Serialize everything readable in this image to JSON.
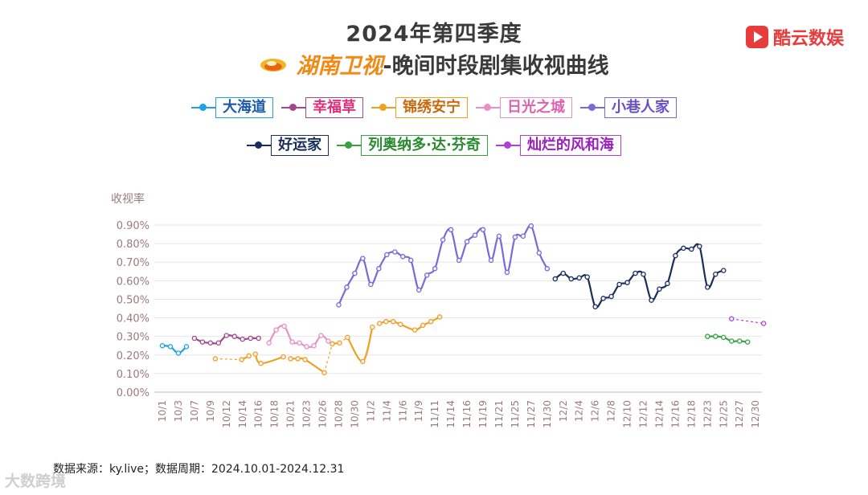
{
  "header": {
    "title_line1": "2024年第四季度",
    "channel": "湖南卫视",
    "title_line2_rest": "-晚间时段剧集收视曲线",
    "brand": "酷云数娱"
  },
  "footer": {
    "source": "数据来源：ky.live；数据周期：2024.10.01-2024.12.31",
    "watermark": "大数跨境"
  },
  "colors": {
    "title": "#3a3a3a",
    "channel": "#f08a14",
    "brand": "#e83c3c",
    "axis_text": "#9a7a80"
  },
  "chart_data": {
    "type": "line",
    "ylabel": "收视率",
    "ylim": [
      0,
      0.9
    ],
    "yticks": [
      "0.00%",
      "0.10%",
      "0.20%",
      "0.30%",
      "0.40%",
      "0.50%",
      "0.60%",
      "0.70%",
      "0.80%",
      "0.90%"
    ],
    "xticks": [
      "10/1",
      "10/3",
      "10/7",
      "10/9",
      "10/12",
      "10/14",
      "10/16",
      "10/18",
      "10/21",
      "10/23",
      "10/26",
      "10/28",
      "10/30",
      "11/2",
      "11/4",
      "11/6",
      "11/9",
      "11/11",
      "11/14",
      "11/16",
      "11/19",
      "11/21",
      "11/25",
      "11/27",
      "11/30",
      "12/2",
      "12/4",
      "12/6",
      "12/8",
      "12/10",
      "12/12",
      "12/14",
      "12/16",
      "12/18",
      "12/23",
      "12/25",
      "12/27",
      "12/30"
    ],
    "series": [
      {
        "name": "大海道",
        "color": "#1fa3e0",
        "text_color": "#1a5aa8",
        "legend_row": 1,
        "points": [
          [
            0,
            0.25
          ],
          [
            0.5,
            0.245
          ],
          [
            1,
            0.21
          ],
          [
            1.5,
            0.245
          ]
        ]
      },
      {
        "name": "幸福草",
        "color": "#a0488c",
        "text_color": "#e0307a",
        "legend_row": 1,
        "points": [
          [
            2,
            0.29
          ],
          [
            2.5,
            0.27
          ],
          [
            3,
            0.265
          ],
          [
            3.5,
            0.265
          ],
          [
            4,
            0.305
          ],
          [
            4.5,
            0.3
          ],
          [
            5,
            0.285
          ],
          [
            5.5,
            0.29
          ],
          [
            6,
            0.29
          ]
        ]
      },
      {
        "name": "锦绣安宁",
        "color": "#f0a020",
        "text_color": "#c86a10",
        "legend_row": 1,
        "points": [
          [
            3.3,
            0.18
          ],
          [
            4.95,
            0.175
          ],
          [
            5.4,
            0.195
          ],
          [
            5.8,
            0.205
          ],
          [
            6.15,
            0.155
          ],
          [
            7.55,
            0.19
          ],
          [
            8,
            0.18
          ],
          [
            8.45,
            0.18
          ],
          [
            8.9,
            0.175
          ],
          [
            10.1,
            0.105
          ],
          [
            10.6,
            0.26
          ],
          [
            11.05,
            0.265
          ],
          [
            11.55,
            0.295
          ],
          [
            12.5,
            0.165
          ],
          [
            13.1,
            0.35
          ],
          [
            13.55,
            0.37
          ],
          [
            13.95,
            0.38
          ],
          [
            14.4,
            0.38
          ],
          [
            14.85,
            0.365
          ],
          [
            15.75,
            0.335
          ],
          [
            16.25,
            0.36
          ],
          [
            16.75,
            0.38
          ],
          [
            17.3,
            0.405
          ]
        ],
        "dashed_after": [
          0,
          2,
          5,
          9,
          11,
          14
        ]
      },
      {
        "name": "日光之城",
        "color": "#e890c8",
        "text_color": "#e060b0",
        "legend_row": 1,
        "points": [
          [
            6.65,
            0.265
          ],
          [
            7.1,
            0.335
          ],
          [
            7.6,
            0.355
          ],
          [
            8.1,
            0.27
          ],
          [
            8.55,
            0.265
          ],
          [
            9.0,
            0.245
          ],
          [
            9.45,
            0.25
          ],
          [
            9.9,
            0.305
          ],
          [
            10.35,
            0.275
          ]
        ]
      },
      {
        "name": "小巷人家",
        "color": "#7a6ad8",
        "text_color": "#6a50c8",
        "legend_row": 1,
        "points": [
          [
            11.0,
            0.47
          ],
          [
            11.5,
            0.565
          ],
          [
            12.0,
            0.64
          ],
          [
            12.5,
            0.72
          ],
          [
            13.0,
            0.58
          ],
          [
            13.5,
            0.665
          ],
          [
            14.0,
            0.74
          ],
          [
            14.5,
            0.755
          ],
          [
            15.0,
            0.73
          ],
          [
            15.5,
            0.71
          ],
          [
            16.0,
            0.55
          ],
          [
            16.5,
            0.63
          ],
          [
            17.0,
            0.665
          ],
          [
            17.5,
            0.82
          ],
          [
            18.0,
            0.875
          ],
          [
            18.5,
            0.71
          ],
          [
            19.0,
            0.81
          ],
          [
            19.5,
            0.845
          ],
          [
            20.0,
            0.875
          ],
          [
            20.5,
            0.71
          ],
          [
            21.0,
            0.84
          ],
          [
            21.5,
            0.645
          ],
          [
            22.0,
            0.835
          ],
          [
            22.5,
            0.84
          ],
          [
            23.0,
            0.895
          ],
          [
            23.5,
            0.75
          ],
          [
            24.0,
            0.665
          ]
        ]
      },
      {
        "name": "好运家",
        "color": "#1a2e5c",
        "text_color": "#1a2e5c",
        "legend_row": 2,
        "points": [
          [
            24.5,
            0.61
          ],
          [
            25.0,
            0.64
          ],
          [
            25.5,
            0.61
          ],
          [
            26.0,
            0.615
          ],
          [
            26.5,
            0.62
          ],
          [
            27.0,
            0.46
          ],
          [
            27.5,
            0.505
          ],
          [
            28.0,
            0.515
          ],
          [
            28.5,
            0.58
          ],
          [
            29.0,
            0.59
          ],
          [
            29.5,
            0.64
          ],
          [
            30.0,
            0.635
          ],
          [
            30.5,
            0.495
          ],
          [
            31.0,
            0.555
          ],
          [
            31.5,
            0.585
          ],
          [
            32.0,
            0.735
          ],
          [
            32.5,
            0.775
          ],
          [
            33.0,
            0.77
          ],
          [
            33.5,
            0.785
          ],
          [
            34.0,
            0.565
          ],
          [
            34.5,
            0.635
          ],
          [
            35.0,
            0.655
          ]
        ]
      },
      {
        "name": "列奥纳多·达·芬奇",
        "color": "#3aa040",
        "text_color": "#2a8a30",
        "legend_row": 2,
        "points": [
          [
            34.0,
            0.3
          ],
          [
            34.5,
            0.3
          ],
          [
            35.0,
            0.295
          ],
          [
            35.5,
            0.275
          ],
          [
            36.0,
            0.275
          ],
          [
            36.5,
            0.27
          ]
        ]
      },
      {
        "name": "灿烂的风和海",
        "color": "#b040d8",
        "text_color": "#9a20c0",
        "legend_row": 2,
        "points": [
          [
            35.5,
            0.395
          ],
          [
            37.5,
            0.37
          ]
        ],
        "dashed_after": [
          0
        ]
      }
    ]
  }
}
